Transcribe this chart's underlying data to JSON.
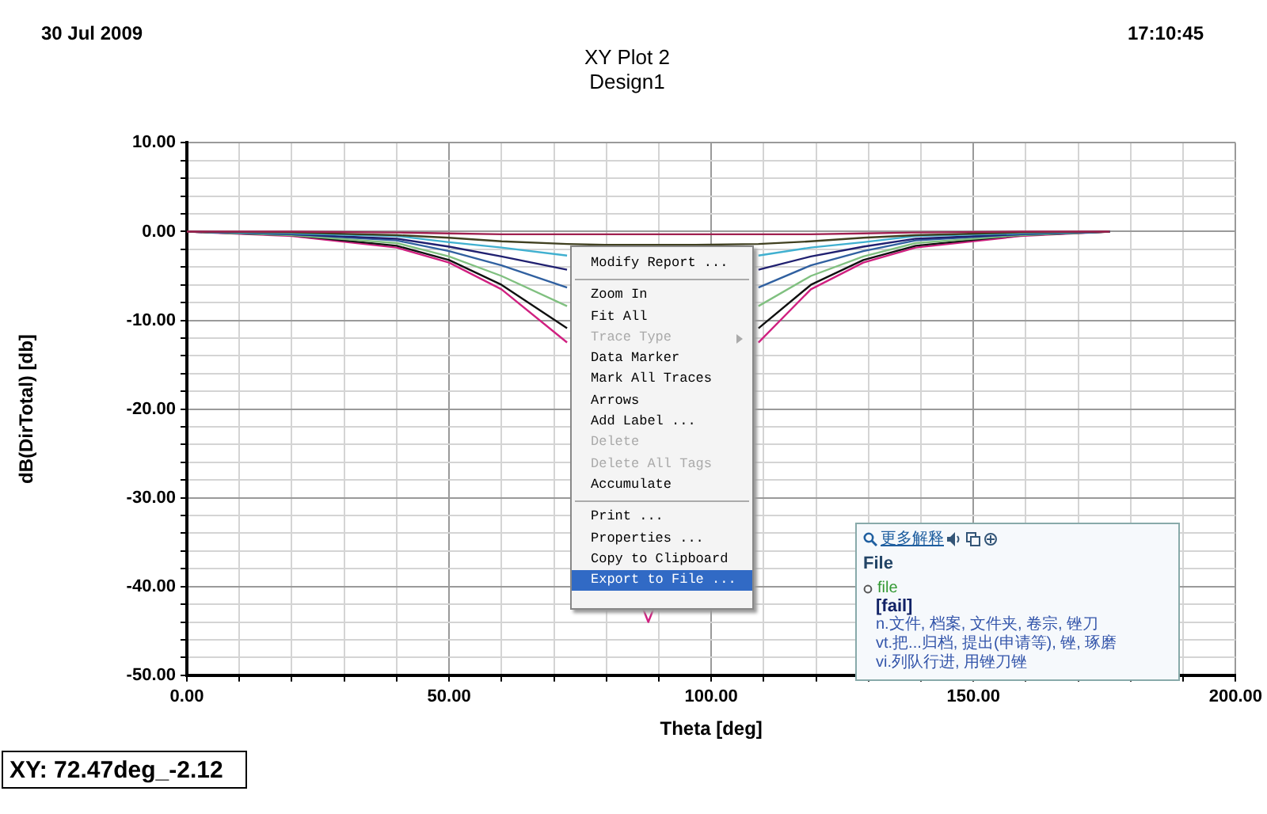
{
  "chart_data": {
    "type": "line",
    "title": "XY Plot 2",
    "subtitle": "Design1",
    "xlabel": "Theta [deg]",
    "ylabel": "dB(DirTotal) [db]",
    "x": [
      0,
      20,
      40,
      50,
      60,
      72.5,
      80,
      87,
      88,
      89,
      97,
      109,
      119,
      129,
      139,
      159,
      176
    ],
    "series": [
      {
        "color": "#a02050",
        "values": [
          0,
          0,
          -0.1,
          -0.2,
          -0.3,
          -0.3,
          -0.3,
          -0.3,
          -0.3,
          -0.3,
          -0.3,
          -0.3,
          -0.3,
          -0.2,
          -0.1,
          0,
          0
        ]
      },
      {
        "color": "#404020",
        "values": [
          0,
          -0.1,
          -0.4,
          -0.7,
          -1.1,
          -1.4,
          -1.5,
          -1.5,
          -1.5,
          -1.5,
          -1.5,
          -1.4,
          -1.1,
          -0.7,
          -0.4,
          -0.1,
          0
        ]
      },
      {
        "color": "#40b0d0",
        "values": [
          0,
          -0.2,
          -0.5,
          -1.2,
          -1.8,
          -2.7,
          null,
          null,
          null,
          null,
          null,
          -2.7,
          -1.8,
          -1.2,
          -0.5,
          -0.2,
          0
        ]
      },
      {
        "color": "#202070",
        "values": [
          0,
          -0.3,
          -0.8,
          -1.7,
          -2.8,
          -4.3,
          null,
          null,
          null,
          null,
          null,
          -4.3,
          -2.8,
          -1.7,
          -0.8,
          -0.3,
          0
        ]
      },
      {
        "color": "#3060a0",
        "values": [
          0,
          -0.3,
          -1,
          -2.2,
          -3.8,
          -6.3,
          null,
          null,
          null,
          null,
          null,
          -6.3,
          -3.8,
          -2.2,
          -1,
          -0.3,
          0
        ]
      },
      {
        "color": "#80c080",
        "values": [
          0,
          -0.4,
          -1.3,
          -2.8,
          -5,
          -8.4,
          null,
          null,
          null,
          null,
          null,
          -8.4,
          -5,
          -2.8,
          -1.3,
          -0.4,
          0
        ]
      },
      {
        "color": "#101010",
        "values": [
          0,
          -0.4,
          -1.6,
          -3.2,
          -6,
          -10.9,
          null,
          null,
          null,
          null,
          null,
          -10.9,
          -6,
          -3.2,
          -1.6,
          -0.4,
          0
        ]
      },
      {
        "color": "#d02080",
        "values": [
          0,
          -0.5,
          -1.8,
          -3.5,
          -6.5,
          -12.5,
          null,
          -42.5,
          -44,
          -42.5,
          null,
          -12.5,
          -6.5,
          -3.5,
          -1.8,
          -0.5,
          0
        ]
      }
    ],
    "xlim": [
      0,
      200
    ],
    "xticks": [
      {
        "value": 0,
        "label": "0.00"
      },
      {
        "value": 10,
        "label": null
      },
      {
        "value": 20,
        "label": null
      },
      {
        "value": 30,
        "label": null
      },
      {
        "value": 40,
        "label": null
      },
      {
        "value": 50,
        "label": "50.00"
      },
      {
        "value": 60,
        "label": null
      },
      {
        "value": 70,
        "label": null
      },
      {
        "value": 80,
        "label": null
      },
      {
        "value": 90,
        "label": null
      },
      {
        "value": 100,
        "label": "100.00"
      },
      {
        "value": 110,
        "label": null
      },
      {
        "value": 120,
        "label": null
      },
      {
        "value": 130,
        "label": null
      },
      {
        "value": 140,
        "label": null
      },
      {
        "value": 150,
        "label": "150.00"
      },
      {
        "value": 160,
        "label": null
      },
      {
        "value": 170,
        "label": null
      },
      {
        "value": 180,
        "label": null
      },
      {
        "value": 190,
        "label": null
      },
      {
        "value": 200,
        "label": "200.00"
      }
    ],
    "ylim": [
      -50,
      10
    ],
    "yticks": [
      {
        "value": -50,
        "label": "-50.00"
      },
      {
        "value": -48,
        "label": null
      },
      {
        "value": -46,
        "label": null
      },
      {
        "value": -44,
        "label": null
      },
      {
        "value": -42,
        "label": null
      },
      {
        "value": -40,
        "label": "-40.00"
      },
      {
        "value": -38,
        "label": null
      },
      {
        "value": -36,
        "label": null
      },
      {
        "value": -34,
        "label": null
      },
      {
        "value": -32,
        "label": null
      },
      {
        "value": -30,
        "label": "-30.00"
      },
      {
        "value": -28,
        "label": null
      },
      {
        "value": -26,
        "label": null
      },
      {
        "value": -24,
        "label": null
      },
      {
        "value": -22,
        "label": null
      },
      {
        "value": -20,
        "label": "-20.00"
      },
      {
        "value": -18,
        "label": null
      },
      {
        "value": -16,
        "label": null
      },
      {
        "value": -14,
        "label": null
      },
      {
        "value": -12,
        "label": null
      },
      {
        "value": -10,
        "label": "-10.00"
      },
      {
        "value": -8,
        "label": null
      },
      {
        "value": -6,
        "label": null
      },
      {
        "value": -4,
        "label": null
      },
      {
        "value": -2,
        "label": null
      },
      {
        "value": 0,
        "label": "0.00"
      },
      {
        "value": 2,
        "label": null
      },
      {
        "value": 4,
        "label": null
      },
      {
        "value": 6,
        "label": null
      },
      {
        "value": 8,
        "label": null
      },
      {
        "value": 10,
        "label": "10.00"
      }
    ],
    "grid": true,
    "legend": false,
    "marker": "none",
    "annotations": [
      "30 Jul 2009",
      "17:10:45",
      "XY: 72.47deg_-2.12",
      "Modify Report ...",
      "Zoom In",
      "Fit All",
      "Trace Type",
      "Data Marker",
      "Mark All Traces",
      "Arrows",
      "Add Label ...",
      "Delete",
      "Delete All Tags",
      "Accumulate",
      "Print ...",
      "Properties ...",
      "Copy to Clipboard",
      "Export to File ...",
      "更多解释",
      "File",
      "file",
      "[fail]",
      "n.文件, 档案, 文件夹, 卷宗, 锉刀",
      "vt.把...归档, 提出(申请等), 锉, 琢磨",
      "vi.列队行进, 用锉刀锉"
    ]
  }
}
